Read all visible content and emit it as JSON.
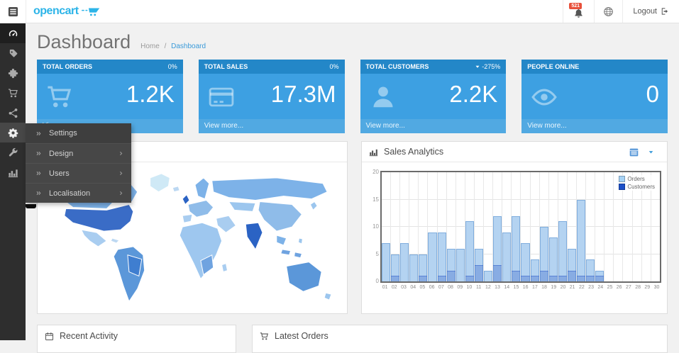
{
  "topbar": {
    "logo_text": "opencart",
    "notification_count": "521",
    "logout_label": "Logout"
  },
  "page": {
    "title": "Dashboard",
    "breadcrumb_home": "Home",
    "breadcrumb_sep": "/",
    "breadcrumb_current": "Dashboard"
  },
  "sidebar": {
    "items": [
      {
        "id": "dashboard",
        "icon": "gauge-icon",
        "state": "active"
      },
      {
        "id": "catalog",
        "icon": "tag-icon",
        "state": ""
      },
      {
        "id": "extensions",
        "icon": "puzzle-icon",
        "state": ""
      },
      {
        "id": "sales",
        "icon": "cart-icon",
        "state": ""
      },
      {
        "id": "marketing",
        "icon": "share-icon",
        "state": ""
      },
      {
        "id": "system",
        "icon": "gear-icon",
        "state": "open"
      },
      {
        "id": "tools",
        "icon": "wrench-icon",
        "state": ""
      },
      {
        "id": "reports",
        "icon": "bar-chart-icon",
        "state": ""
      }
    ]
  },
  "system_menu": {
    "items": [
      {
        "label": "Settings",
        "has_children": false,
        "highlighted": true
      },
      {
        "label": "Design",
        "has_children": true,
        "highlighted": false
      },
      {
        "label": "Users",
        "has_children": true,
        "highlighted": false
      },
      {
        "label": "Localisation",
        "has_children": true,
        "highlighted": false
      }
    ]
  },
  "tiles": [
    {
      "title": "TOTAL ORDERS",
      "percent": "0%",
      "has_caret": false,
      "value": "1.2K",
      "icon": "cart-icon",
      "footer_link": "View more..."
    },
    {
      "title": "TOTAL SALES",
      "percent": "0%",
      "has_caret": false,
      "value": "17.3M",
      "icon": "credit-card-icon",
      "footer_link": "View more..."
    },
    {
      "title": "TOTAL CUSTOMERS",
      "percent": "-275%",
      "has_caret": true,
      "value": "2.2K",
      "icon": "user-icon",
      "footer_link": "View more..."
    },
    {
      "title": "PEOPLE ONLINE",
      "percent": "",
      "has_caret": false,
      "value": "0",
      "icon": "eye-icon",
      "footer_link": "View more..."
    }
  ],
  "sales_panel": {
    "title": "Sales Analytics"
  },
  "bottom_panels": {
    "recent_activity_title": "Recent Activity",
    "latest_orders_title": "Latest Orders"
  },
  "colors": {
    "tile_header_blue": "#2387c8",
    "tile_body_blue": "#3da0e2",
    "tile_footer_blue": "#51a9e2",
    "logo_cyan": "#2cb4e8",
    "badge_red": "#e8503a",
    "link_blue": "#3a9ad9",
    "sidebar_dark": "#2e2e2e",
    "flyout_dark": "#474747",
    "orders_bar": "#b4d3f1",
    "customers_bar": "#1d50c8",
    "map_highlight": "#2b63c4"
  },
  "chart_data": {
    "type": "bar",
    "title": "Sales Analytics",
    "categories": [
      "01",
      "02",
      "03",
      "04",
      "05",
      "06",
      "07",
      "08",
      "09",
      "10",
      "11",
      "12",
      "13",
      "14",
      "15",
      "16",
      "17",
      "18",
      "19",
      "20",
      "21",
      "22",
      "23",
      "24",
      "25",
      "26",
      "27",
      "28",
      "29",
      "30"
    ],
    "series": [
      {
        "name": "Orders",
        "color": "#a6d2f5",
        "values": [
          7,
          5,
          7,
          5,
          5,
          9,
          9,
          6,
          6,
          11,
          6,
          2,
          12,
          9,
          12,
          7,
          4,
          10,
          8,
          11,
          6,
          15,
          4,
          2,
          0,
          0,
          0,
          0,
          0,
          0
        ]
      },
      {
        "name": "Customers",
        "color": "#1d50c8",
        "values": [
          0,
          1,
          0,
          0,
          1,
          0,
          1,
          2,
          0,
          1,
          3,
          0,
          3,
          0,
          2,
          1,
          1,
          2,
          1,
          1,
          2,
          1,
          1,
          1,
          0,
          0,
          0,
          0,
          0,
          0
        ]
      }
    ],
    "ylim": [
      0,
      20
    ],
    "yticks": [
      0,
      5,
      10,
      15,
      20
    ],
    "grid": true,
    "legend_position": "top-right"
  }
}
